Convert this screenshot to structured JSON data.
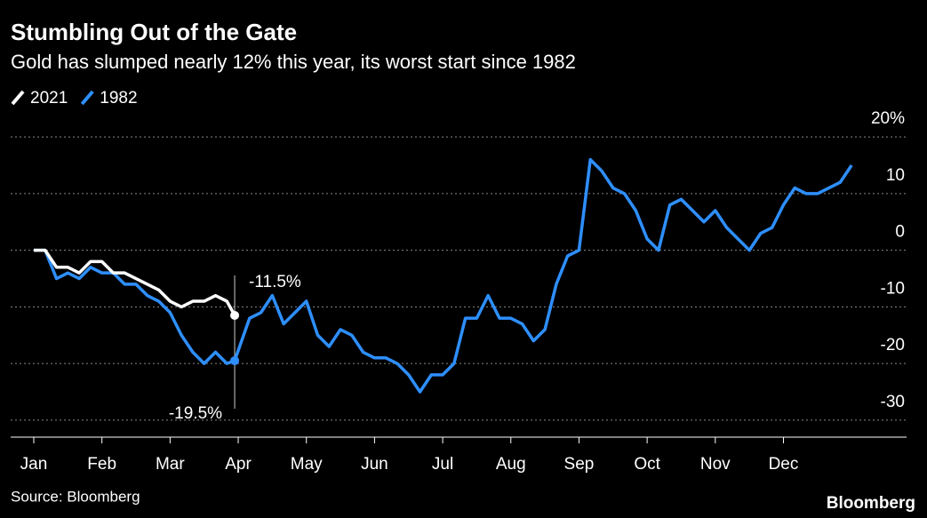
{
  "chart_data": {
    "type": "line",
    "title": "Stumbling Out of the Gate",
    "subtitle": "Gold has slumped nearly 12% this year, its worst start since 1982",
    "source": "Source: Bloomberg",
    "brand": "Bloomberg",
    "categories": [
      "Jan",
      null,
      null,
      null,
      null,
      null,
      "Feb",
      null,
      null,
      null,
      null,
      null,
      "Mar",
      null,
      null,
      null,
      null,
      null,
      "Apr",
      null,
      null,
      null,
      null,
      null,
      "May",
      null,
      null,
      null,
      null,
      null,
      "Jun",
      null,
      null,
      null,
      null,
      null,
      "Jul",
      null,
      null,
      null,
      null,
      null,
      "Aug",
      null,
      null,
      null,
      null,
      null,
      "Sep",
      null,
      null,
      null,
      null,
      null,
      "Oct",
      null,
      null,
      null,
      null,
      null,
      "Nov",
      null,
      null,
      null,
      null,
      null,
      "Dec",
      null,
      null,
      null,
      null,
      null,
      null
    ],
    "series": [
      {
        "name": "2021",
        "color": "#ffffff",
        "values": [
          0,
          0,
          -3,
          -3,
          -4,
          -2,
          -2,
          -4,
          -4,
          -5,
          -6,
          -7,
          -9,
          -10,
          -9,
          -9,
          -8,
          -9,
          -11.5,
          null,
          null,
          null,
          null,
          null,
          null,
          null,
          null,
          null,
          null,
          null,
          null,
          null,
          null,
          null,
          null,
          null,
          null,
          null,
          null,
          null,
          null,
          null,
          null,
          null,
          null,
          null,
          null,
          null,
          null,
          null,
          null,
          null,
          null,
          null,
          null,
          null,
          null,
          null,
          null,
          null,
          null,
          null,
          null,
          null,
          null,
          null,
          null,
          null,
          null,
          null,
          null,
          null,
          null
        ]
      },
      {
        "name": "1982",
        "color": "#2e8fff",
        "values": [
          0,
          0,
          -5,
          -4,
          -5,
          -3,
          -4,
          -4,
          -6,
          -6,
          -8,
          -9,
          -11,
          -15,
          -18,
          -20,
          -18,
          -20,
          -19.5,
          -12,
          -11,
          -8,
          -13,
          -11,
          -9,
          -15,
          -17,
          -14,
          -15,
          -18,
          -19,
          -19,
          -20,
          -22,
          -25,
          -22,
          -22,
          -20,
          -12,
          -12,
          -8,
          -12,
          -12,
          -13,
          -16,
          -14,
          -6,
          -1,
          0,
          16,
          14,
          11,
          10,
          7,
          2,
          0,
          8,
          9,
          7,
          5,
          7,
          4,
          2,
          0,
          3,
          4,
          8,
          11,
          10,
          10,
          11,
          12,
          15
        ]
      }
    ],
    "annotations": [
      "-11.5%",
      "-19.5%"
    ],
    "ylim": [
      -33,
      22
    ],
    "yticks": [
      {
        "value": 20,
        "label": "20%"
      },
      10,
      0,
      -10,
      -20,
      -30
    ],
    "grid": true
  }
}
